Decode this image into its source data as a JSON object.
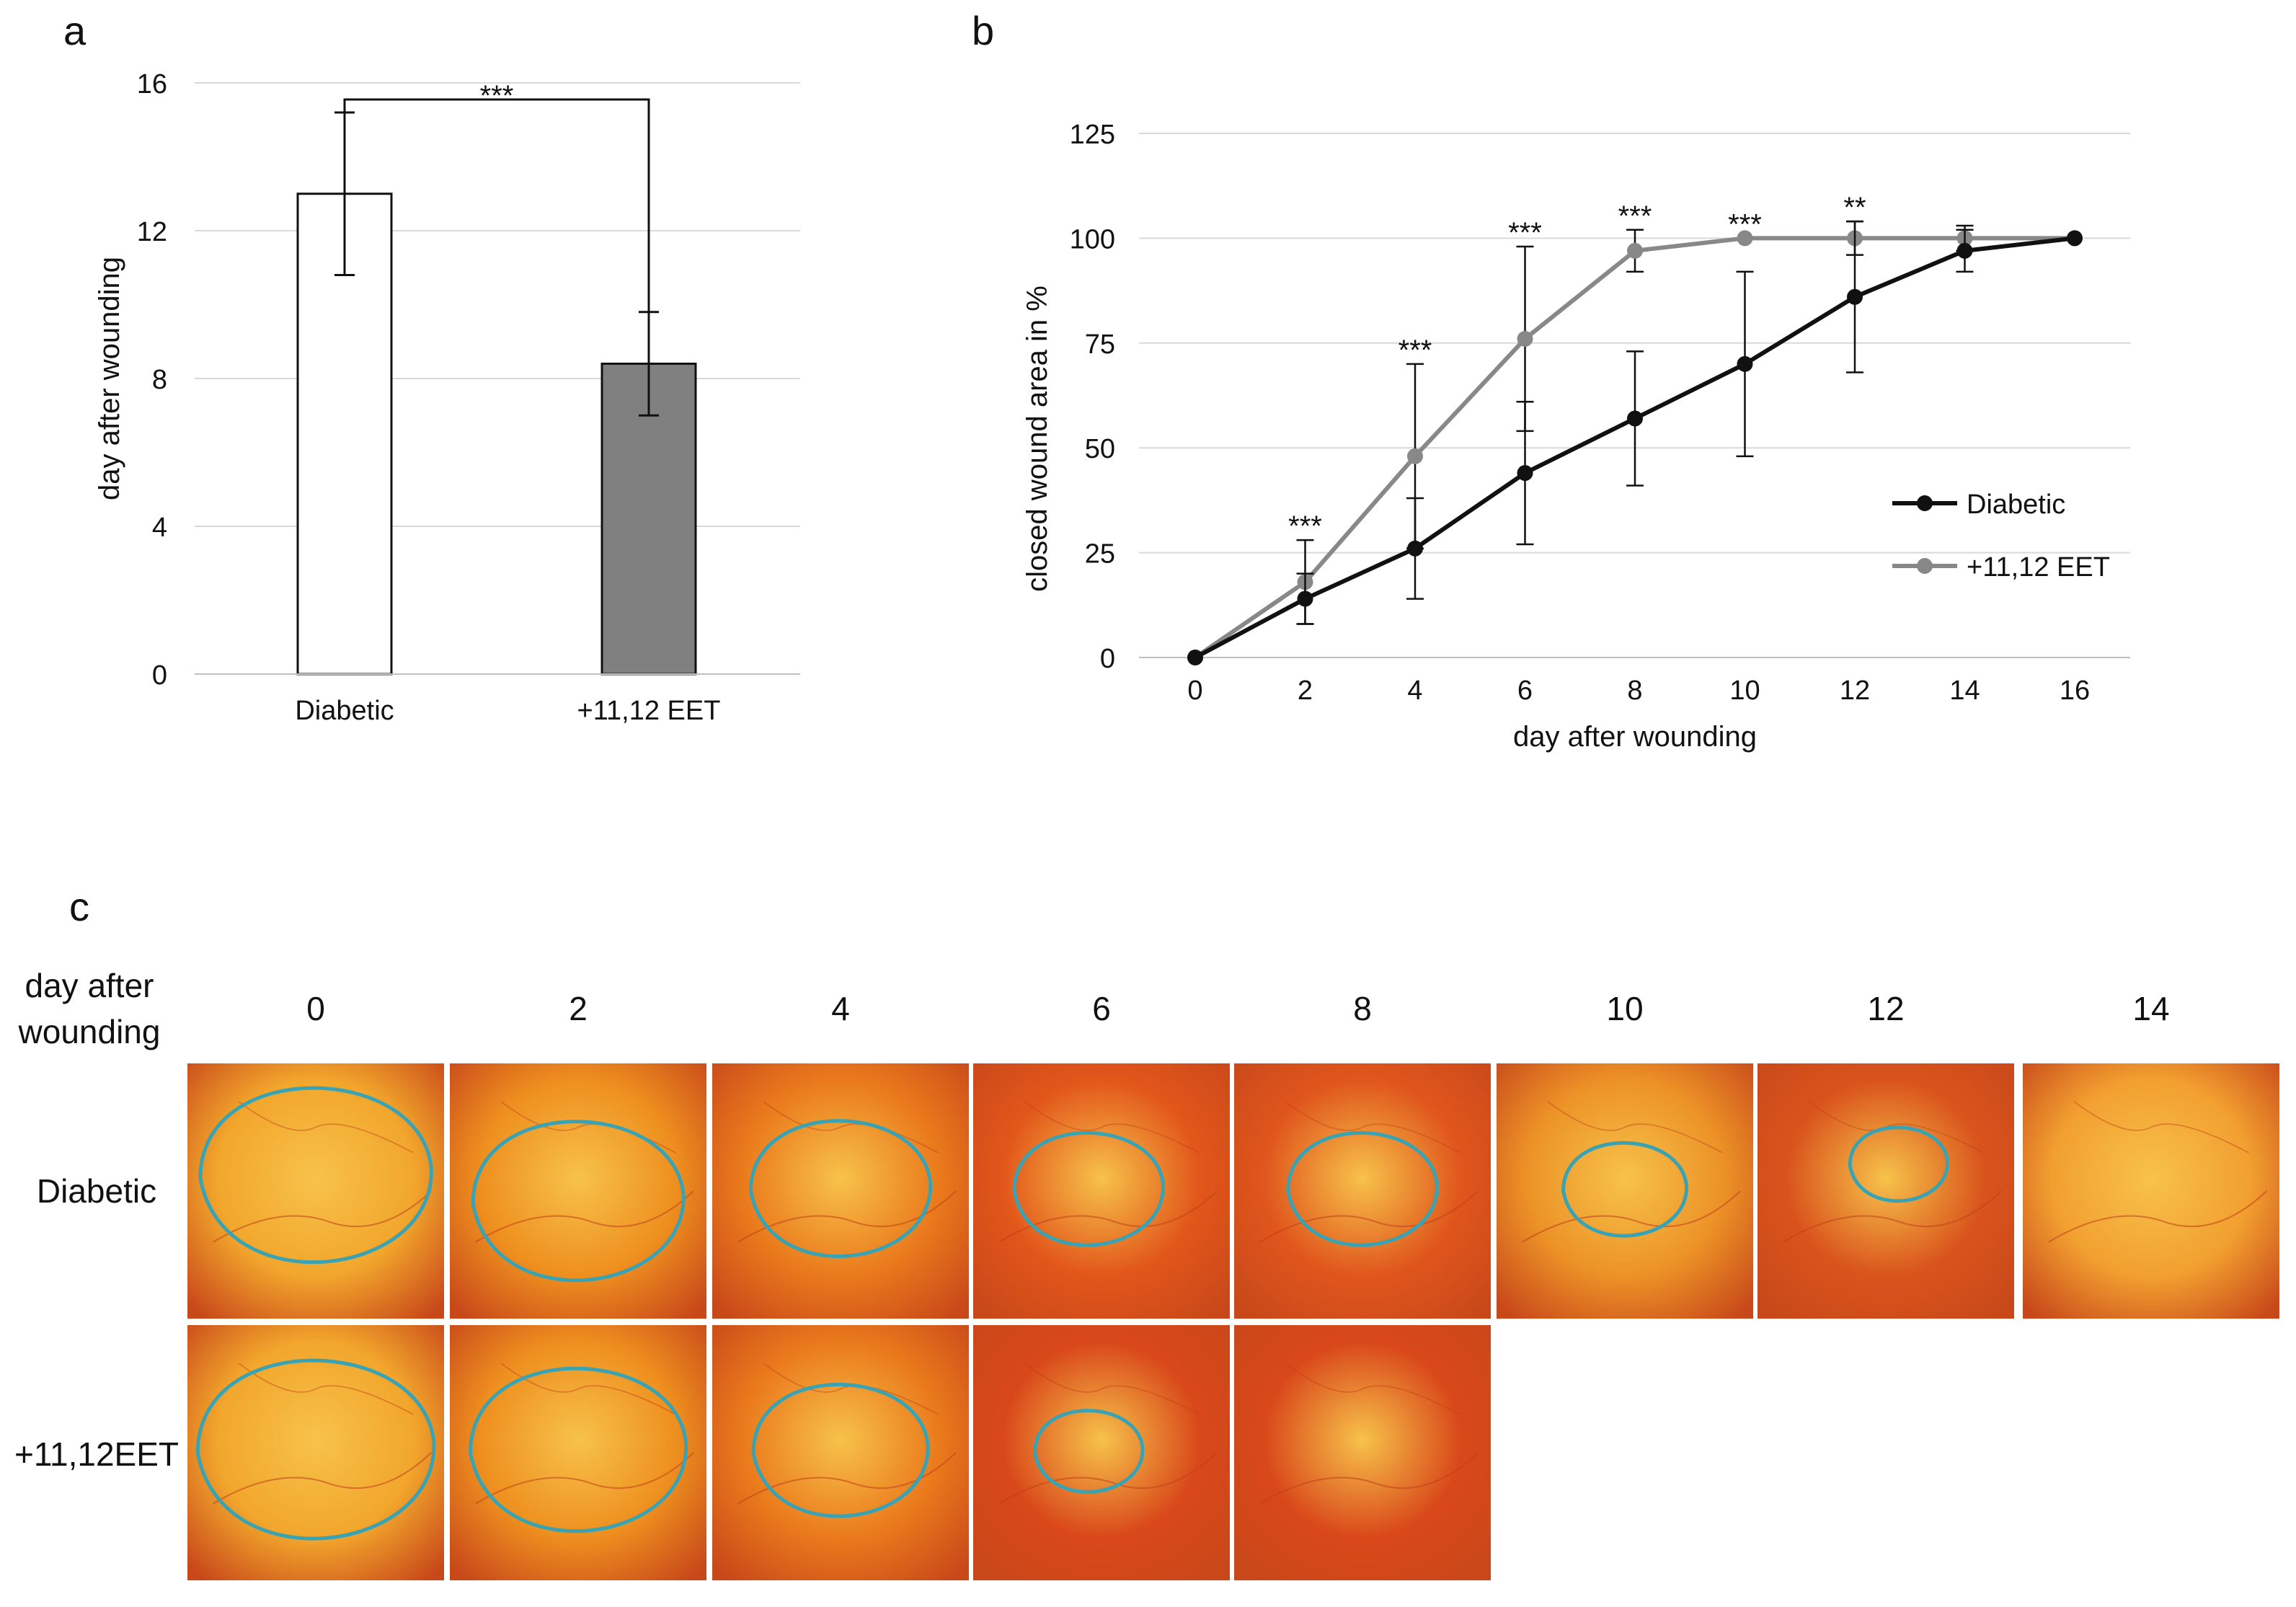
{
  "colors": {
    "diabetic": "#111111",
    "eet": "#888888",
    "bar_eet_fill": "#808080",
    "grid": "#d9d9d9",
    "outline": "#3aa3b3"
  },
  "panels": {
    "a": "a",
    "b": "b",
    "c": "c"
  },
  "chart_data": [
    {
      "type": "bar",
      "panel": "a",
      "categories": [
        "Diabetic",
        "+11,12 EET"
      ],
      "values": [
        13.0,
        8.4
      ],
      "errors": [
        2.2,
        1.4
      ],
      "ylabel": "day after wounding",
      "ylim": [
        0,
        16
      ],
      "yticks": [
        "0",
        "4",
        "8",
        "12",
        "16"
      ],
      "significance": "***",
      "grid": true
    },
    {
      "type": "line",
      "panel": "b",
      "x": [
        0,
        2,
        4,
        6,
        8,
        10,
        12,
        14,
        16
      ],
      "xticks": [
        "0",
        "2",
        "4",
        "6",
        "8",
        "10",
        "12",
        "14",
        "16"
      ],
      "yticks": [
        "0",
        "25",
        "50",
        "75",
        "100",
        "125"
      ],
      "ylim": [
        0,
        125
      ],
      "xlabel": "day after wounding",
      "ylabel": "closed wound area in %",
      "series": [
        {
          "name": "Diabetic",
          "values": [
            0,
            14,
            26,
            44,
            57,
            70,
            86,
            97,
            100
          ],
          "errors": [
            0,
            6,
            12,
            17,
            16,
            22,
            18,
            5,
            0
          ]
        },
        {
          "name": "+11,12 EET",
          "values": [
            0,
            18,
            48,
            76,
            97,
            100,
            100,
            100,
            100
          ],
          "errors": [
            0,
            10,
            22,
            22,
            5,
            0,
            4,
            3,
            0
          ]
        }
      ],
      "significance": [
        "",
        "***",
        "***",
        "***",
        "***",
        "***",
        "**",
        "",
        ""
      ],
      "legend_position": "right",
      "grid": true
    }
  ],
  "panel_c": {
    "header_label": "day after wounding",
    "days": [
      "0",
      "2",
      "4",
      "6",
      "8",
      "10",
      "12",
      "14"
    ],
    "rows": [
      "Diabetic",
      "+11,12EET"
    ]
  }
}
